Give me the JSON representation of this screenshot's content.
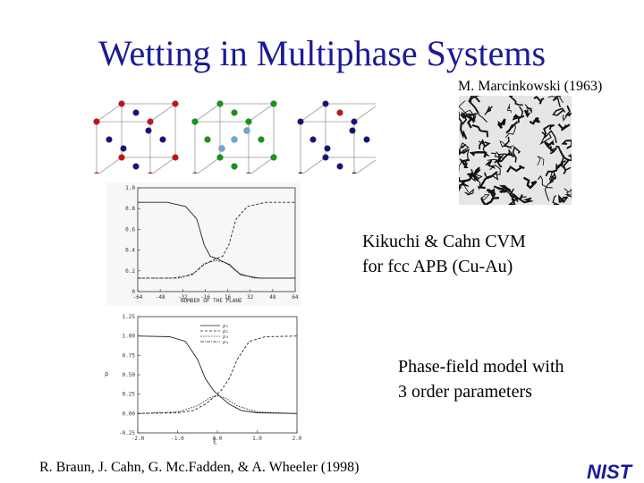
{
  "slide": {
    "title": "Wetting in Multiphase Systems",
    "ref_micrograph": "M. Marcinkowski (1963)",
    "cvm_caption": [
      "Kikuchi & Cahn CVM",
      "for fcc APB (Cu-Au)"
    ],
    "pf_caption": [
      "Phase-field model with",
      "3 order parameters"
    ],
    "ref_authors": "R. Braun, J. Cahn, G. Mc.Fadden, & A. Wheeler (1998)",
    "logo_text": "NIST",
    "colors": {
      "title": "#1a1a99",
      "red_atom": "#cc1111",
      "blue_atom": "#141480",
      "green_atom": "#119911",
      "lightblue_atom": "#66aadd"
    }
  },
  "chart_data": [
    {
      "type": "line",
      "xlabel": "NUMBER OF THE PLANE",
      "x_tick_labels": [
        "-64",
        "-48",
        "-32",
        "-16",
        "16",
        "32",
        "48",
        "64"
      ],
      "y_tick_labels": [
        "1.0",
        "0.8",
        "0.6",
        "0.4",
        "0.2",
        "0"
      ],
      "ylim": [
        0,
        1.0
      ],
      "series": [
        {
          "values": [
            [
              -64,
              0.86
            ],
            [
              -40,
              0.86
            ],
            [
              -25,
              0.82
            ],
            [
              -16,
              0.7
            ],
            [
              -10,
              0.45
            ],
            [
              -5,
              0.34
            ],
            [
              0,
              0.32
            ],
            [
              10,
              0.26
            ],
            [
              20,
              0.16
            ],
            [
              35,
              0.13
            ],
            [
              64,
              0.13
            ]
          ]
        },
        {
          "values": [
            [
              -64,
              0.13
            ],
            [
              -35,
              0.13
            ],
            [
              -20,
              0.16
            ],
            [
              -10,
              0.26
            ],
            [
              0,
              0.32
            ],
            [
              5,
              0.34
            ],
            [
              10,
              0.45
            ],
            [
              16,
              0.7
            ],
            [
              25,
              0.82
            ],
            [
              40,
              0.86
            ],
            [
              64,
              0.86
            ]
          ]
        },
        {
          "values": [
            [
              -64,
              0.13
            ],
            [
              -30,
              0.13
            ],
            [
              -18,
              0.18
            ],
            [
              -10,
              0.27
            ],
            [
              0,
              0.3
            ],
            [
              10,
              0.27
            ],
            [
              18,
              0.18
            ],
            [
              30,
              0.13
            ],
            [
              64,
              0.13
            ]
          ]
        }
      ]
    },
    {
      "type": "line",
      "xlabel": "ξ",
      "ylabel": "ρ",
      "x_tick_labels": [
        "-2.0",
        "-1.0",
        "0.0",
        "1.0",
        "2.0"
      ],
      "y_tick_labels": [
        "1.25",
        "1.00",
        "0.75",
        "0.50",
        "0.25",
        "0.00",
        "-0.25"
      ],
      "xlim": [
        -2.0,
        2.0
      ],
      "ylim": [
        -0.25,
        1.25
      ],
      "legend": [
        "ρ₁",
        "ρ₂",
        "ρ₃",
        "ρ₄"
      ],
      "series": [
        {
          "name": "ρ₁",
          "values": [
            [
              -2.0,
              1.0
            ],
            [
              -1.2,
              0.99
            ],
            [
              -0.8,
              0.93
            ],
            [
              -0.5,
              0.7
            ],
            [
              -0.3,
              0.45
            ],
            [
              -0.1,
              0.3
            ],
            [
              0.0,
              0.25
            ],
            [
              0.3,
              0.12
            ],
            [
              0.6,
              0.04
            ],
            [
              1.0,
              0.01
            ],
            [
              2.0,
              0.0
            ]
          ]
        },
        {
          "name": "ρ₂",
          "values": [
            [
              -2.0,
              0.0
            ],
            [
              -1.0,
              0.01
            ],
            [
              -0.6,
              0.04
            ],
            [
              -0.3,
              0.12
            ],
            [
              0.0,
              0.25
            ],
            [
              0.1,
              0.3
            ],
            [
              0.3,
              0.45
            ],
            [
              0.5,
              0.7
            ],
            [
              0.8,
              0.93
            ],
            [
              1.2,
              0.99
            ],
            [
              2.0,
              1.0
            ]
          ]
        },
        {
          "name": "ρ₃",
          "values": [
            [
              -2.0,
              0.0
            ],
            [
              -1.0,
              0.02
            ],
            [
              -0.5,
              0.1
            ],
            [
              -0.2,
              0.2
            ],
            [
              0.0,
              0.23
            ],
            [
              0.2,
              0.2
            ],
            [
              0.5,
              0.1
            ],
            [
              1.0,
              0.02
            ],
            [
              2.0,
              0.0
            ]
          ]
        }
      ]
    }
  ]
}
